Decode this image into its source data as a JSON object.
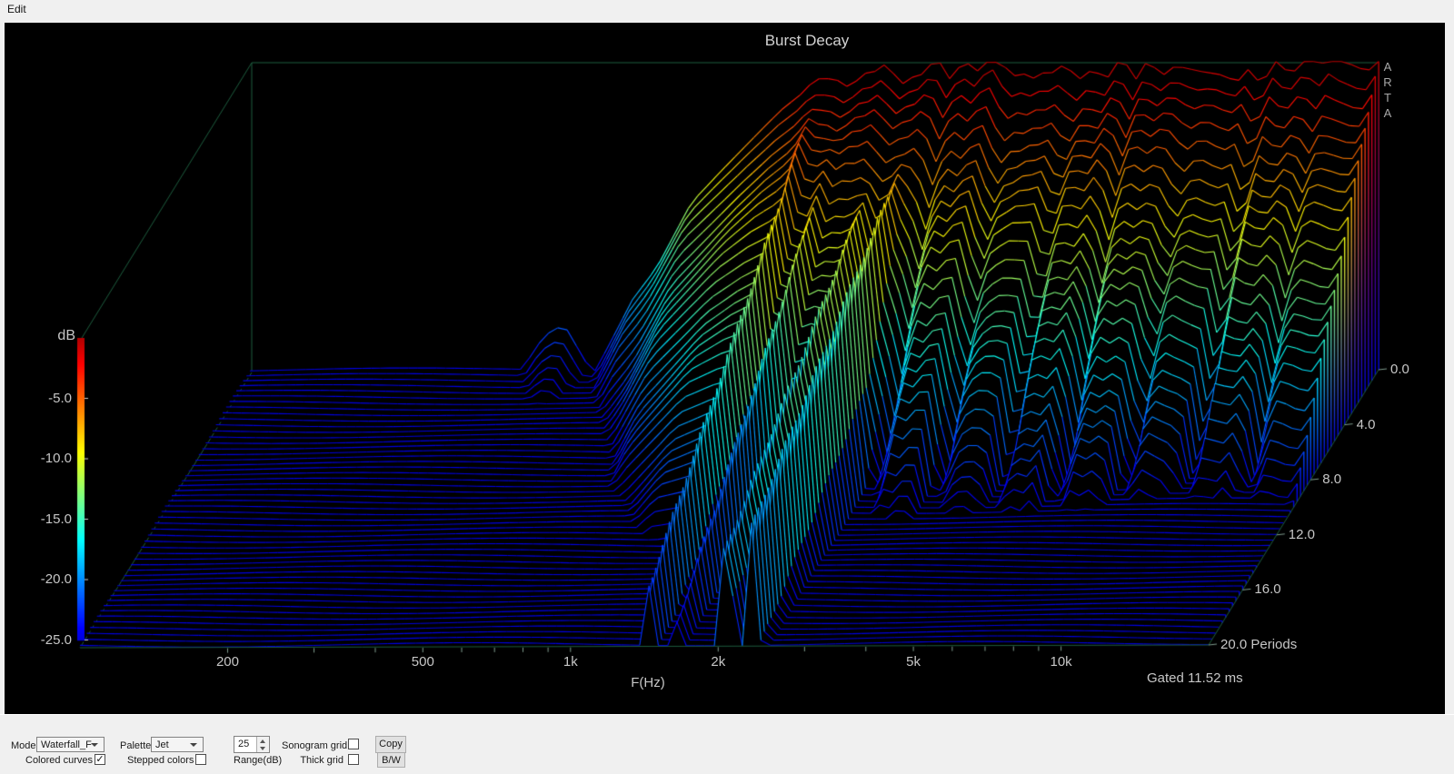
{
  "menu": {
    "edit_label": "Edit"
  },
  "chart_data": {
    "type": "waterfall",
    "title": "Burst Decay",
    "xlabel": "F(Hz)",
    "x_scale": "log",
    "x_range_hz": [
      100,
      20000
    ],
    "x_ticks": [
      {
        "hz": 200,
        "label": "200"
      },
      {
        "hz": 500,
        "label": "500"
      },
      {
        "hz": 1000,
        "label": "1k"
      },
      {
        "hz": 2000,
        "label": "2k"
      },
      {
        "hz": 5000,
        "label": "5k"
      },
      {
        "hz": 10000,
        "label": "10k"
      }
    ],
    "x_minor_ticks_hz": [
      300,
      400,
      600,
      700,
      800,
      900,
      3000,
      4000,
      6000,
      7000,
      8000,
      9000
    ],
    "z_label": "dB",
    "z_range_db": [
      -25,
      0
    ],
    "z_ticks": [
      {
        "db": -5,
        "label": "-5.0"
      },
      {
        "db": -10,
        "label": "-10.0"
      },
      {
        "db": -15,
        "label": "-15.0"
      },
      {
        "db": -20,
        "label": "-20.0"
      },
      {
        "db": -25,
        "label": "-25.0"
      }
    ],
    "depth_label": "Periods",
    "depth_range_periods": [
      0,
      20
    ],
    "depth_ticks": [
      {
        "v": 0,
        "label": "0.0"
      },
      {
        "v": 4,
        "label": "4.0"
      },
      {
        "v": 8,
        "label": "8.0"
      },
      {
        "v": 12,
        "label": "12.0"
      },
      {
        "v": 16,
        "label": "16.0"
      },
      {
        "v": 20,
        "label": "20.0 Periods"
      }
    ],
    "annotations": {
      "gated": "Gated 11.52 ms",
      "watermark": "ARTA"
    },
    "palette": "Jet",
    "colors": {
      "background": "#000000",
      "box_lines": "#1d5c3e",
      "labels": "#c6c6c6"
    },
    "num_slices": 51,
    "num_freq_points": 122,
    "surface_model": {
      "floor_db": -25,
      "top_clip": -0.12,
      "envelope": [
        [
          2.0,
          -40
        ],
        [
          2.35,
          -33
        ],
        [
          2.52,
          -27
        ],
        [
          2.6,
          -22
        ],
        [
          2.64,
          -21
        ],
        [
          2.7,
          -25
        ],
        [
          2.78,
          -19
        ],
        [
          2.83,
          -16.5
        ],
        [
          2.9,
          -11.5
        ],
        [
          3.0,
          -7.5
        ],
        [
          3.09,
          -3.8
        ],
        [
          3.16,
          -1.6
        ],
        [
          3.26,
          -0.6
        ],
        [
          3.4,
          -0.3
        ],
        [
          4.30103,
          -0.3
        ]
      ],
      "ripple_ramp": [
        3.1,
        3.3
      ],
      "ripples": [
        [
          0.85,
          0.13,
          3.25
        ],
        [
          0.5,
          0.37,
          3.0
        ],
        [
          0.3,
          0.053,
          0
        ]
      ],
      "decay": {
        "base": 1.45,
        "hf_add": 0.95,
        "hf_from": 3.02,
        "hf_span": 0.3,
        "wobble": 0.15,
        "wfreq": 3.1
      },
      "notches": [
        {
          "c": 3.423,
          "s": 0.016,
          "d0": 2,
          "g": 0.9
        },
        {
          "c": 3.556,
          "s": 0.015,
          "d0": 2,
          "g": 0.75
        },
        {
          "c": 3.681,
          "s": 0.014,
          "d0": 1.5,
          "g": 0.8
        },
        {
          "c": 3.806,
          "s": 0.015,
          "d0": 2,
          "g": 0.7
        },
        {
          "c": 3.934,
          "s": 0.014,
          "d0": 1.5,
          "g": 0.75
        },
        {
          "c": 4.06,
          "s": 0.015,
          "d0": 2,
          "g": 0.8
        },
        {
          "c": 4.19,
          "s": 0.013,
          "d0": 1.5,
          "g": 0.7
        }
      ],
      "resonances": [
        {
          "c": 3.161,
          "a": -2,
          "d": 0.9,
          "w": 0.035
        },
        {
          "c": 3.215,
          "a": -3,
          "d": 1.0,
          "w": 0.03
        },
        {
          "c": 3.318,
          "a": -4,
          "d": 0.62,
          "w": 0.03
        },
        {
          "c": 3.372,
          "a": -4,
          "d": 0.55,
          "w": 0.026
        }
      ],
      "texture": [
        0.25,
        11,
        1.7
      ],
      "floor_line": [
        0.18,
        0.15,
        6.1,
        0.8
      ]
    }
  },
  "controls": {
    "mode_label": "Mode",
    "mode_value": "Waterfall_F",
    "palette_label": "Palette",
    "palette_value": "Jet",
    "range_value": "25",
    "range_db_label": "Range(dB)",
    "sonogram_grid_label": "Sonogram grid",
    "thick_grid_label": "Thick grid",
    "colored_curves_label": "Colored curves",
    "stepped_colors_label": "Stepped colors",
    "copy_button": "Copy",
    "bw_button": "B/W",
    "checkbox_states": {
      "sonogram_grid": false,
      "thick_grid": false,
      "colored_curves": true,
      "stepped_colors": false
    }
  }
}
